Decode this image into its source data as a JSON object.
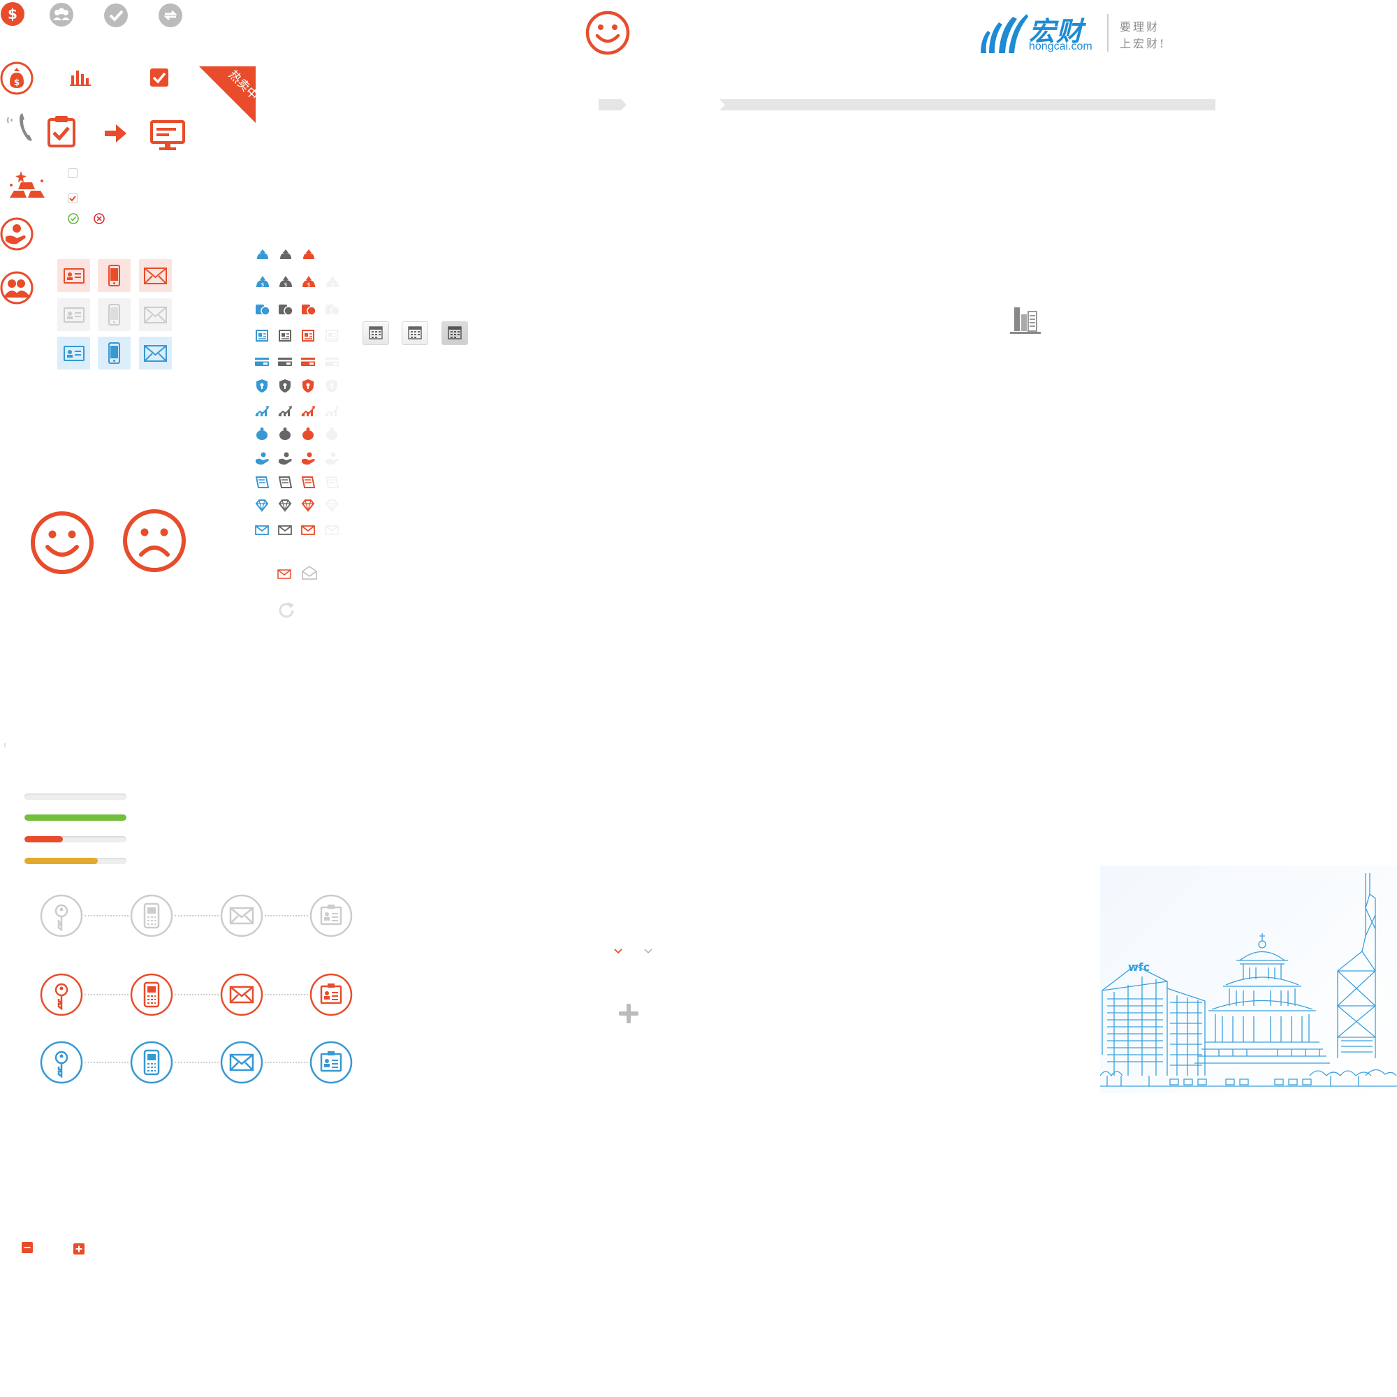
{
  "ribbon": {
    "label": "热卖中"
  },
  "logo": {
    "name": "宏财",
    "domain": "hongcai.com",
    "slogan_line1": "要理财",
    "slogan_line2": "上宏财!"
  },
  "progress_bars": [
    {
      "name": "empty",
      "fraction": 0.0,
      "color": "#e5e5e5"
    },
    {
      "name": "complete",
      "fraction": 1.0,
      "color": "#73be3b"
    },
    {
      "name": "low",
      "fraction": 0.38,
      "color": "#e84c2b"
    },
    {
      "name": "medium",
      "fraction": 0.72,
      "color": "#e3a92c"
    }
  ],
  "colors": {
    "brand_red": "#e84c2b",
    "brand_blue": "#3798d4",
    "gray_icon": "#666666",
    "light_gray": "#cccccc",
    "green": "#5bb534",
    "ribbon": "#e84c2b",
    "tile_red_bg": "#fbe4e0",
    "tile_gray_bg": "#f3f3f3",
    "tile_blue_bg": "#dbeefa"
  },
  "step_flow_icons": [
    "key-icon",
    "mobile-icon",
    "mail-icon",
    "id-card-icon"
  ],
  "small_icon_sprite_rows": [
    "money-bag",
    "money-bag-dollar",
    "coins",
    "document",
    "bank-card",
    "shield",
    "growth-chart",
    "piggy-bank",
    "hand-coin",
    "ledger",
    "diamond",
    "mail"
  ],
  "small_icon_variants": [
    "blue",
    "gray",
    "red",
    "faint"
  ]
}
